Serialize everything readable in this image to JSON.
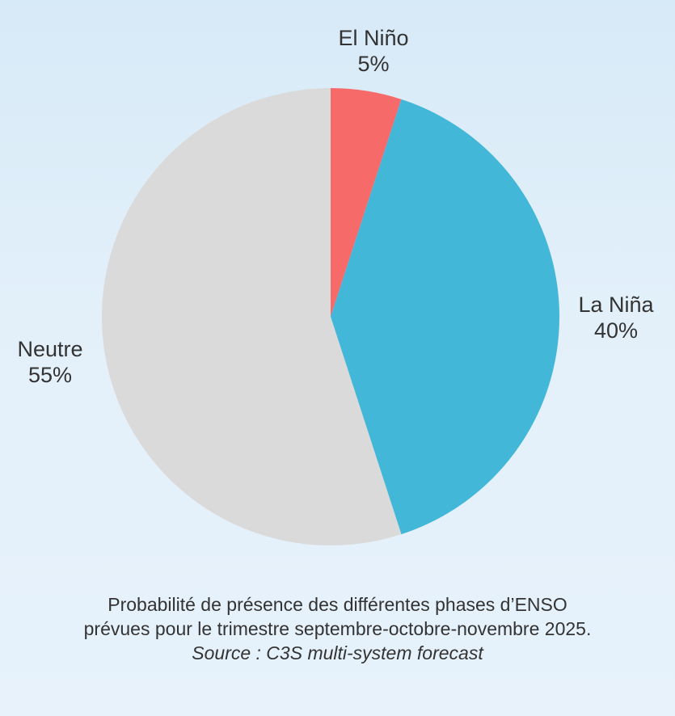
{
  "chart_data": {
    "type": "pie",
    "categories": [
      "El Niño",
      "La Niña",
      "Neutre"
    ],
    "values": [
      5,
      40,
      55
    ],
    "value_labels": [
      "5%",
      "40%",
      "55%"
    ],
    "colors": [
      "#f76a6a",
      "#42b7d8",
      "#dadada"
    ],
    "start_angle_deg": 0,
    "direction": "clockwise",
    "title": ""
  },
  "caption": {
    "line1": "Probabilité de présence des différentes phases d’ENSO",
    "line2": "prévues pour le trimestre septembre-octobre-novembre 2025.",
    "source": "Source : C3S multi-system forecast"
  }
}
